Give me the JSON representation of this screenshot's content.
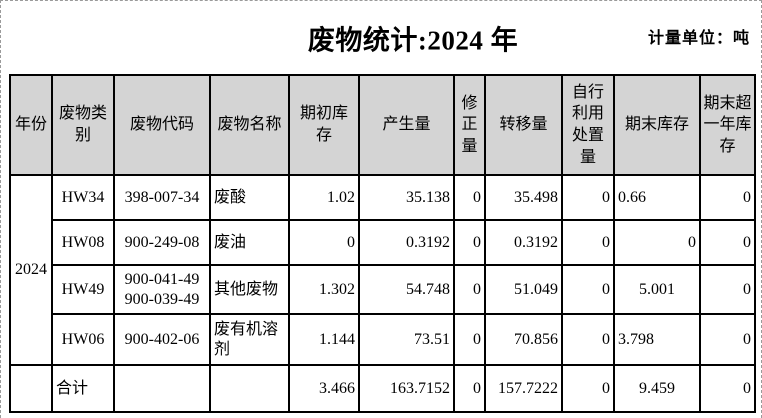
{
  "page": {
    "title": "废物统计:2024 年",
    "unit_label": "计量单位：吨"
  },
  "table": {
    "headers": [
      "年份",
      "废物类\n别",
      "废物代码",
      "废物名称",
      "期初库\n存",
      "产生量",
      "修\n正\n量",
      "转移量",
      "自行\n利用\n处置\n量",
      "期末库存",
      "期末超\n一年库\n存"
    ],
    "year": "2024",
    "rows": [
      {
        "category": "HW34",
        "code": "398-007-34",
        "name": "废酸",
        "opening": "1.02",
        "generated": "35.138",
        "corrected": "0",
        "transferred": "35.498",
        "self_use_disposal": "0",
        "closing": "0.66",
        "over_one_year": "0"
      },
      {
        "category": "HW08",
        "code": "900-249-08",
        "name": "废油",
        "opening": "0",
        "generated": "0.3192",
        "corrected": "0",
        "transferred": "0.3192",
        "self_use_disposal": "0",
        "closing": "0",
        "over_one_year": "0"
      },
      {
        "category": "HW49",
        "code": "900-041-49\n900-039-49",
        "name": "其他废物",
        "opening": "1.302",
        "generated": "54.748",
        "corrected": "0",
        "transferred": "51.049",
        "self_use_disposal": "0",
        "closing": "5.001",
        "over_one_year": "0"
      },
      {
        "category": "HW06",
        "code": "900-402-06",
        "name": "废有机溶剂",
        "opening": "1.144",
        "generated": "73.51",
        "corrected": "0",
        "transferred": "70.856",
        "self_use_disposal": "0",
        "closing": "3.798",
        "over_one_year": "0"
      }
    ],
    "total_row": {
      "label": "合计",
      "opening": "3.466",
      "generated": "163.7152",
      "corrected": "0",
      "transferred": "157.7222",
      "self_use_disposal": "0",
      "closing": "9.459",
      "over_one_year": "0"
    }
  }
}
